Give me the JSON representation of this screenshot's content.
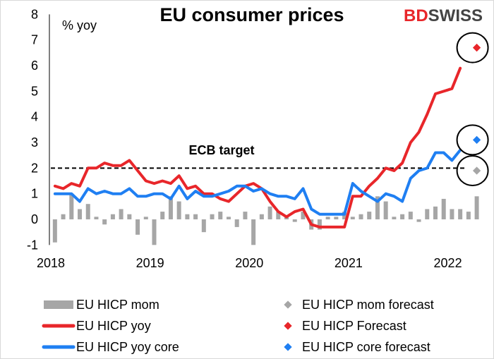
{
  "chart_data": {
    "type": "line",
    "title": "EU consumer prices",
    "ylabel": "% yoy",
    "ylim": [
      -1,
      8
    ],
    "yticks": [
      "-1",
      "0",
      "1",
      "2",
      "3",
      "4",
      "5",
      "6",
      "7",
      "8"
    ],
    "xticks": [
      "2018",
      "2019",
      "2020",
      "2021",
      "2022"
    ],
    "x_start": "2018-01",
    "reference_line": {
      "label": "ECB target",
      "value": 2
    },
    "grid": false,
    "legend_position": "bottom",
    "series": [
      {
        "name": "EU HICP mom",
        "kind": "bar",
        "color": "#a6a6a6",
        "values": [
          -0.9,
          0.2,
          1.0,
          0.4,
          0.6,
          0.1,
          -0.2,
          0.2,
          0.4,
          0.2,
          -0.6,
          0.1,
          -1.0,
          0.3,
          0.9,
          0.7,
          0.2,
          0.2,
          -0.5,
          0.2,
          0.3,
          0.1,
          -0.3,
          0.3,
          -1.0,
          0.2,
          0.5,
          0.3,
          0.1,
          -0.1,
          0.3,
          -0.4,
          -0.4,
          0.1,
          0.1,
          0.3,
          0.1,
          0.2,
          0.3,
          0.9,
          0.7,
          0.1,
          0.2,
          0.3,
          -0.1,
          0.4,
          0.5,
          0.8,
          0.4,
          0.4,
          0.3,
          0.9
        ]
      },
      {
        "name": "EU HICP yoy",
        "kind": "line",
        "color": "#e8262a",
        "values": [
          1.3,
          1.2,
          1.4,
          1.3,
          2.0,
          2.0,
          2.2,
          2.1,
          2.1,
          2.3,
          1.9,
          1.5,
          1.4,
          1.5,
          1.4,
          1.7,
          1.2,
          1.3,
          1.0,
          1.0,
          0.8,
          0.7,
          1.0,
          1.3,
          1.4,
          1.2,
          0.7,
          0.3,
          0.1,
          0.3,
          0.4,
          -0.2,
          -0.3,
          -0.3,
          -0.3,
          -0.3,
          0.9,
          0.9,
          1.3,
          1.6,
          2.0,
          1.9,
          2.2,
          3.0,
          3.4,
          4.1,
          4.9,
          5.0,
          5.1,
          5.9
        ]
      },
      {
        "name": "EU HICP yoy core",
        "kind": "line",
        "color": "#1f7ff2",
        "values": [
          1.0,
          1.0,
          1.0,
          0.7,
          1.2,
          1.0,
          1.1,
          1.0,
          1.0,
          1.2,
          0.9,
          0.9,
          1.0,
          1.0,
          0.8,
          1.3,
          0.8,
          1.1,
          0.9,
          0.9,
          1.0,
          1.1,
          1.3,
          1.3,
          1.1,
          1.2,
          1.0,
          0.9,
          0.9,
          0.8,
          1.2,
          0.4,
          0.2,
          0.2,
          0.2,
          0.2,
          1.4,
          1.1,
          0.9,
          0.7,
          1.0,
          0.9,
          0.7,
          1.6,
          1.9,
          2.0,
          2.6,
          2.6,
          2.3,
          2.7
        ]
      },
      {
        "name": "EU HICP mom forecast",
        "kind": "marker",
        "color": "#a6a6a6",
        "x_index": 51,
        "value": 1.9
      },
      {
        "name": "EU HICP Forecast",
        "kind": "marker",
        "color": "#e8262a",
        "x_index": 51,
        "value": 6.7
      },
      {
        "name": "EU HICP core forecast",
        "kind": "marker",
        "color": "#1f7ff2",
        "x_index": 51,
        "value": 3.1
      }
    ]
  },
  "brand": {
    "part1": "BD",
    "part2": "SWISS",
    "color1": "#e8262a",
    "color2": "#444444"
  }
}
